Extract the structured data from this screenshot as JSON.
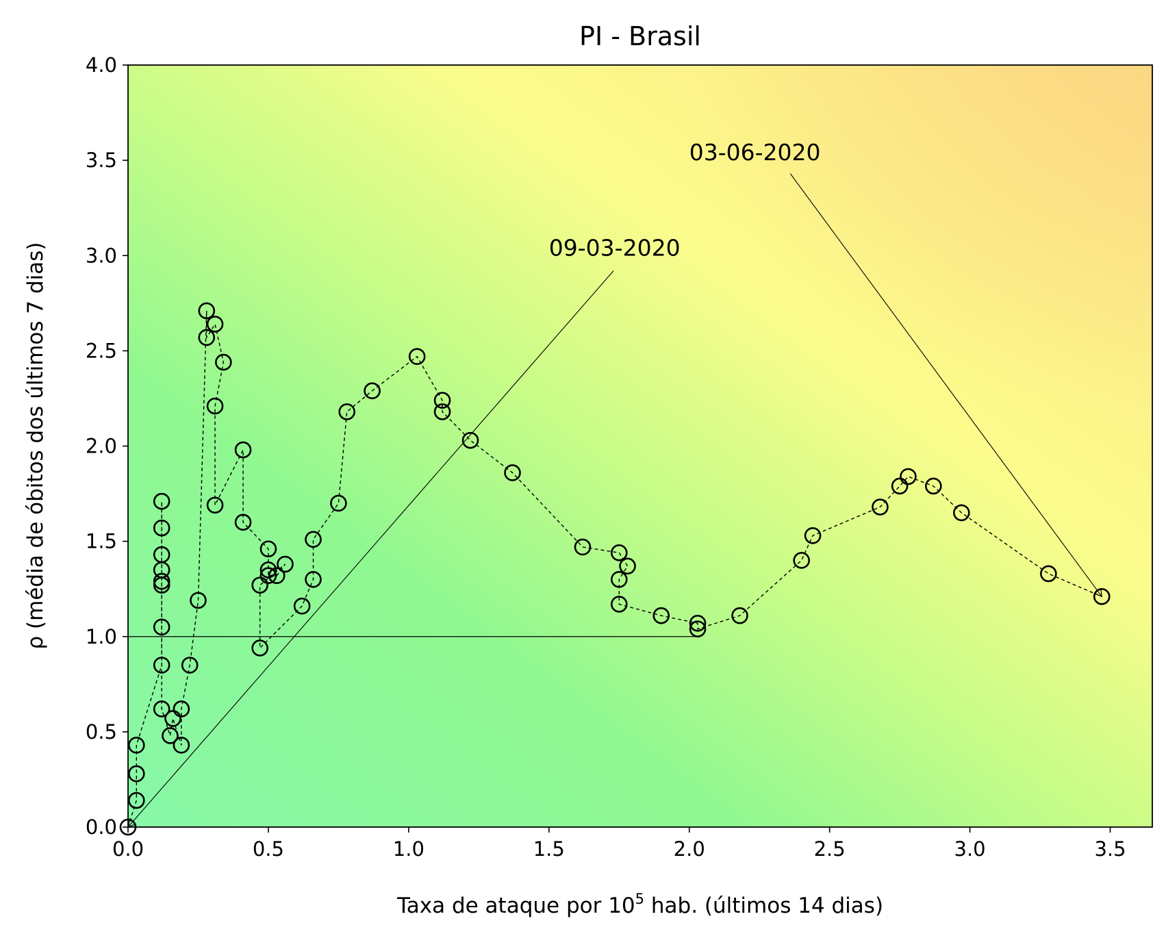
{
  "chart_data": {
    "type": "scatter",
    "title": "PI - Brasil",
    "xlabel_prefix": "Taxa de ataque por 10",
    "xlabel_sup": "5",
    "xlabel_suffix": " hab. (últimos 14 dias)",
    "ylabel": "ρ (média de óbitos dos últimos 7 dias)",
    "xlim": [
      0,
      3.65
    ],
    "ylim": [
      0,
      4.0
    ],
    "xticks": [
      "0.0",
      "0.5",
      "1.0",
      "1.5",
      "2.0",
      "2.5",
      "3.0",
      "3.5"
    ],
    "yticks": [
      "0.0",
      "0.5",
      "1.0",
      "1.5",
      "2.0",
      "2.5",
      "3.0",
      "3.5",
      "4.0"
    ],
    "grid": false,
    "background": {
      "description": "risk gradient",
      "colors": {
        "low": "#88f8a8",
        "mid_green": "#90f890",
        "yellow": "#fcfc8c",
        "high": "#fcd884"
      }
    },
    "series": [
      {
        "marker": "open-circle",
        "line": "dashed",
        "color": "#000000",
        "points": [
          [
            0.0,
            0.0
          ],
          [
            0.03,
            0.14
          ],
          [
            0.03,
            0.28
          ],
          [
            0.03,
            0.43
          ],
          [
            0.12,
            0.85
          ],
          [
            0.12,
            1.05
          ],
          [
            0.12,
            1.27
          ],
          [
            0.12,
            1.29
          ],
          [
            0.12,
            1.35
          ],
          [
            0.12,
            1.43
          ],
          [
            0.12,
            1.57
          ],
          [
            0.12,
            1.71
          ],
          [
            0.12,
            0.62
          ],
          [
            0.15,
            0.48
          ],
          [
            0.16,
            0.57
          ],
          [
            0.19,
            0.43
          ],
          [
            0.19,
            0.62
          ],
          [
            0.22,
            0.85
          ],
          [
            0.25,
            1.19
          ],
          [
            0.28,
            2.71
          ],
          [
            0.28,
            2.57
          ],
          [
            0.31,
            2.64
          ],
          [
            0.34,
            2.44
          ],
          [
            0.31,
            2.21
          ],
          [
            0.31,
            1.69
          ],
          [
            0.41,
            1.98
          ],
          [
            0.41,
            1.6
          ],
          [
            0.5,
            1.46
          ],
          [
            0.5,
            1.35
          ],
          [
            0.5,
            1.32
          ],
          [
            0.53,
            1.32
          ],
          [
            0.56,
            1.38
          ],
          [
            0.47,
            1.27
          ],
          [
            0.47,
            0.94
          ],
          [
            0.62,
            1.16
          ],
          [
            0.66,
            1.3
          ],
          [
            0.66,
            1.51
          ],
          [
            0.75,
            1.7
          ],
          [
            0.78,
            2.18
          ],
          [
            0.87,
            2.29
          ],
          [
            1.03,
            2.47
          ],
          [
            1.12,
            2.24
          ],
          [
            1.12,
            2.18
          ],
          [
            1.22,
            2.03
          ],
          [
            1.37,
            1.86
          ],
          [
            1.62,
            1.47
          ],
          [
            1.75,
            1.44
          ],
          [
            1.78,
            1.37
          ],
          [
            1.75,
            1.3
          ],
          [
            1.75,
            1.17
          ],
          [
            1.9,
            1.11
          ],
          [
            2.03,
            1.07
          ],
          [
            2.03,
            1.04
          ],
          [
            2.18,
            1.11
          ],
          [
            2.4,
            1.4
          ],
          [
            2.44,
            1.53
          ],
          [
            2.68,
            1.68
          ],
          [
            2.75,
            1.79
          ],
          [
            2.78,
            1.84
          ],
          [
            2.87,
            1.79
          ],
          [
            2.97,
            1.65
          ],
          [
            3.28,
            1.33
          ],
          [
            3.47,
            1.21
          ]
        ]
      }
    ],
    "reference_line": {
      "y": 1.0,
      "x_from": 0.0,
      "x_to": 2.03
    },
    "annotations": [
      {
        "text": "09-03-2020",
        "text_x": 1.5,
        "text_y": 3.0,
        "line_from": [
          1.73,
          2.92
        ],
        "arrow_to": [
          0.0,
          0.0
        ]
      },
      {
        "text": "03-06-2020",
        "text_x": 2.0,
        "text_y": 3.5,
        "line_from": [
          2.36,
          3.43
        ],
        "arrow_to": [
          3.47,
          1.21
        ]
      }
    ]
  }
}
